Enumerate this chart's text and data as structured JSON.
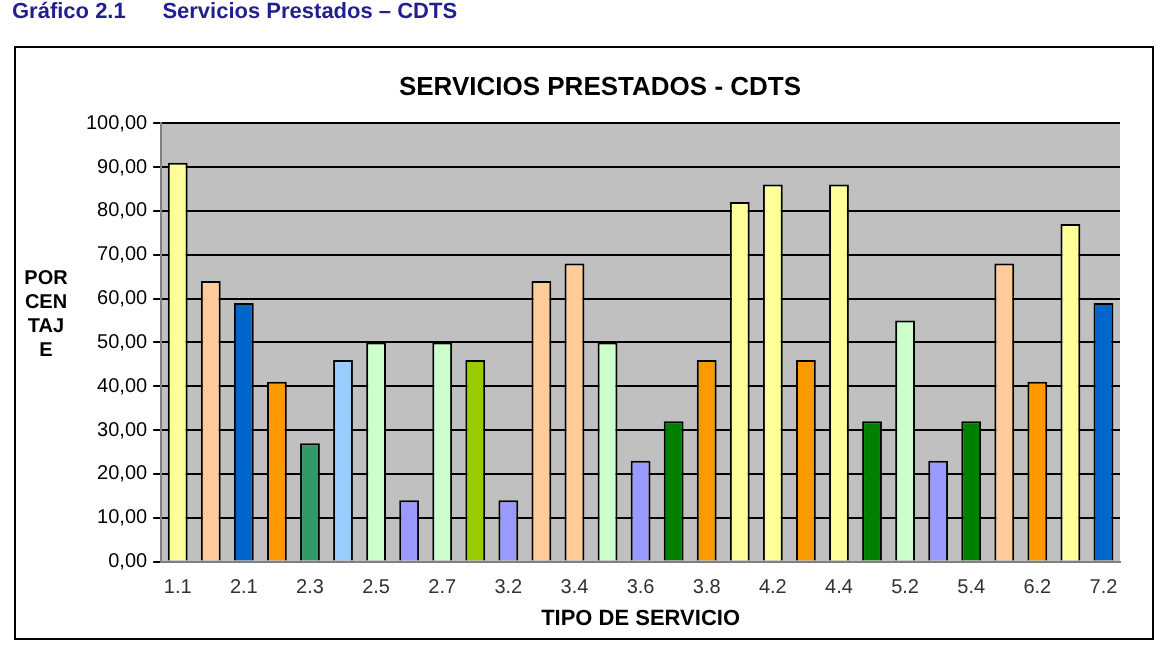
{
  "chart_data": {
    "type": "bar",
    "title": "SERVICIOS PRESTADOS - CDTS",
    "xlabel": "TIPO DE SERVICIO",
    "ylabel": "PORCENTAJE",
    "annotations": [
      "Gráfico 2.1      Servicios Prestados – CDTS"
    ],
    "categories": [
      "1.1",
      null,
      "2.1",
      null,
      "2.3",
      null,
      "2.5",
      null,
      "2.7",
      null,
      "3.2",
      null,
      "3.4",
      null,
      "3.6",
      null,
      "3.8",
      null,
      "4.2",
      null,
      "4.4",
      null,
      "5.2",
      null,
      "5.4",
      null,
      "6.2",
      null,
      "7.2"
    ],
    "values": [
      91,
      64,
      59,
      41,
      27,
      46,
      50,
      14,
      50,
      46,
      14,
      64,
      68,
      50,
      23,
      32,
      46,
      82,
      86,
      46,
      86,
      32,
      55,
      23,
      32,
      68,
      41,
      77,
      59
    ],
    "colors": [
      "#ffff99",
      "#ffcc99",
      "#0066cc",
      "#ff9900",
      "#339966",
      "#99ccff",
      "#ccffcc",
      "#9999ff",
      "#ccffcc",
      "#99cc00",
      "#9999ff",
      "#ffcc99",
      "#ffcc99",
      "#ccffcc",
      "#9999ff",
      "#008000",
      "#ff9900",
      "#ffff99",
      "#ffff99",
      "#ff9900",
      "#ffff99",
      "#008000",
      "#ccffcc",
      "#9999ff",
      "#008000",
      "#ffcc99",
      "#ff9900",
      "#ffff99",
      "#0066cc"
    ],
    "ylim": [
      0,
      100
    ],
    "yticks": [
      {
        "value": 0,
        "label": "0,00"
      },
      {
        "value": 10,
        "label": "10,00"
      },
      {
        "value": 20,
        "label": "20,00"
      },
      {
        "value": 30,
        "label": "30,00"
      },
      {
        "value": 40,
        "label": "40,00"
      },
      {
        "value": 50,
        "label": "50,00"
      },
      {
        "value": 60,
        "label": "60,00"
      },
      {
        "value": 70,
        "label": "70,00"
      },
      {
        "value": 80,
        "label": "80,00"
      },
      {
        "value": 90,
        "label": "90,00"
      },
      {
        "value": 100,
        "label": "100,00"
      }
    ],
    "grid": "y",
    "legend": false
  }
}
